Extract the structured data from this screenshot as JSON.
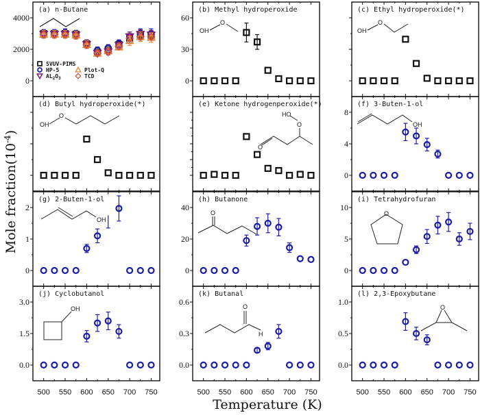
{
  "chart_data": {
    "type": "scatter",
    "xlabel": "Temperature (K)",
    "ylabel": "Mole fraction(10^-4)",
    "ylabel_parts": {
      "main": "Mole fraction(10",
      "sup": "-4",
      "end": ")"
    },
    "x_ticks": [
      500,
      550,
      600,
      650,
      700,
      750
    ],
    "x_range": [
      475,
      770
    ],
    "x": [
      500,
      525,
      550,
      575,
      600,
      625,
      650,
      675,
      700,
      725,
      750
    ],
    "colors": {
      "SVUV-PIMS": "#111111",
      "HP-5": "#1c1ca8",
      "Al2O3": "#7a1a78",
      "Plot-Q": "#e0873a",
      "TCD": "#d04a3a"
    },
    "panels": [
      {
        "id": "a",
        "title": "(a) n-Butane",
        "molecule": "n-butane",
        "ylim": [
          -1000,
          5000
        ],
        "yticks": [
          0,
          2000,
          4000
        ],
        "ytick_labels": [
          "0",
          "2000",
          "4000"
        ],
        "legend": [
          {
            "name": "SVUV-PIMS",
            "marker": "square"
          },
          {
            "name": "HP-5",
            "marker": "circle"
          },
          {
            "name": "AL2O3",
            "marker": "triangle-down",
            "label_main": "AL",
            "sub1": "2",
            "mid": "O",
            "sub2": "3"
          },
          {
            "name": "Plot-Q",
            "marker": "triangle-up"
          },
          {
            "name": "TCD",
            "marker": "diamond"
          }
        ],
        "series": [
          {
            "name": "SVUV-PIMS",
            "marker": "square",
            "values": [
              3000,
              3000,
              3000,
              2950,
              2350,
              1800,
              1950,
              2300,
              2700,
              2900,
              2900
            ],
            "err": [
              250,
              250,
              250,
              250,
              250,
              200,
              200,
              250,
              300,
              300,
              300
            ]
          },
          {
            "name": "HP-5",
            "marker": "circle",
            "values": [
              3000,
              3000,
              3050,
              2950,
              2400,
              1950,
              2100,
              2400,
              2800,
              3000,
              3000
            ],
            "err": [
              250,
              250,
              250,
              250,
              200,
              200,
              200,
              200,
              300,
              300,
              300
            ]
          },
          {
            "name": "Al2O3",
            "marker": "triangle-down",
            "values": [
              2950,
              2950,
              2950,
              2900,
              2300,
              1750,
              1850,
              2250,
              2800,
              2950,
              2900
            ],
            "err": [
              250,
              250,
              250,
              250,
              250,
              200,
              200,
              200,
              300,
              300,
              300
            ]
          },
          {
            "name": "Plot-Q",
            "marker": "triangle-up",
            "values": [
              2950,
              2950,
              2950,
              2900,
              2300,
              1750,
              1900,
              2150,
              2550,
              2800,
              2750
            ],
            "err": [
              250,
              250,
              250,
              250,
              250,
              200,
              200,
              200,
              300,
              300,
              300
            ]
          },
          {
            "name": "TCD",
            "marker": "diamond",
            "values": [
              2950,
              2950,
              2950,
              2900,
              2300,
              1750,
              1850,
              2200,
              2700,
              2800,
              2800
            ],
            "err": [
              0,
              0,
              0,
              0,
              0,
              0,
              0,
              0,
              0,
              0,
              0
            ]
          }
        ]
      },
      {
        "id": "b",
        "title": "(b) Methyl hydroperoxide",
        "molecule": "methyl-hydroperoxide",
        "ylim": [
          -15,
          75
        ],
        "yticks": [
          0,
          30,
          60
        ],
        "ytick_labels": [
          "0",
          "30",
          "60"
        ],
        "series": [
          {
            "name": "SVUV-PIMS",
            "marker": "square",
            "values": [
              0,
              0,
              0,
              0,
              46,
              37,
              10,
              2,
              0,
              0,
              0
            ],
            "err": [
              0,
              0,
              0,
              0,
              9,
              7,
              0,
              0,
              0,
              0,
              0
            ]
          }
        ]
      },
      {
        "id": "c",
        "title": "(c) Ethyl hydroperoxide(*)",
        "molecule": "ethyl-hydroperoxide",
        "ylim": [
          -0.5,
          2.5
        ],
        "yticks": [
          0,
          1,
          2
        ],
        "ytick_labels": [
          "",
          "",
          ""
        ],
        "series": [
          {
            "name": "SVUV-PIMS",
            "marker": "square",
            "values": [
              0,
              0,
              0,
              0,
              1.32,
              0.55,
              0.08,
              0,
              0,
              0,
              0
            ],
            "err": [
              0,
              0,
              0,
              0,
              0,
              0,
              0,
              0,
              0,
              0,
              0
            ]
          }
        ]
      },
      {
        "id": "d",
        "title": "(d) Butyl hydroperoxide(*)",
        "molecule": "butyl-hydroperoxide",
        "ylim": [
          -0.5,
          2.5
        ],
        "yticks": [
          0,
          1,
          2
        ],
        "ytick_labels": [
          "",
          "",
          ""
        ],
        "series": [
          {
            "name": "SVUV-PIMS",
            "marker": "square",
            "values": [
              0,
              0,
              0,
              0,
              1.15,
              0.5,
              0.08,
              0,
              0,
              0,
              0
            ],
            "err": [
              0,
              0,
              0,
              0,
              0,
              0,
              0,
              0,
              0,
              0,
              0
            ]
          }
        ]
      },
      {
        "id": "e",
        "title": "(e) Ketone hydrogenperoxide(*)",
        "molecule": "ketone-hydroperoxide",
        "ylim": [
          -0.5,
          2.5
        ],
        "yticks": [
          0,
          0.5,
          1,
          1.5,
          2
        ],
        "ytick_labels": [
          "",
          "",
          "",
          "",
          ""
        ],
        "series": [
          {
            "name": "SVUV-PIMS",
            "marker": "square",
            "values": [
              0,
              0.03,
              0,
              0,
              1.23,
              0.66,
              0.22,
              0.15,
              0,
              0.03,
              0
            ],
            "err": [
              0,
              0,
              0,
              0,
              0,
              0,
              0,
              0,
              0,
              0,
              0
            ]
          }
        ]
      },
      {
        "id": "f",
        "title": "(f) 3-Buten-1-ol",
        "molecule": "3-buten-1-ol",
        "ylim": [
          -2,
          10
        ],
        "yticks": [
          0,
          4,
          8
        ],
        "ytick_labels": [
          "0",
          "4",
          "8"
        ],
        "series": [
          {
            "name": "HP-5",
            "marker": "circle",
            "values": [
              0,
              0,
              0,
              0,
              5.5,
              5.0,
              3.9,
              2.7,
              0,
              0,
              0
            ],
            "err": [
              0,
              0,
              0,
              0,
              1.1,
              1.0,
              0.8,
              0.5,
              0,
              0,
              0
            ]
          }
        ]
      },
      {
        "id": "g",
        "title": "(g) 2-Buten-1-ol",
        "molecule": "2-buten-1-ol",
        "ylim": [
          -0.5,
          2.5
        ],
        "yticks": [
          0,
          1,
          2
        ],
        "ytick_labels": [
          "0",
          "1",
          "2"
        ],
        "series": [
          {
            "name": "HP-5",
            "marker": "circle",
            "values": [
              0,
              0,
              0,
              0,
              0.7,
              1.1,
              null,
              1.97,
              0,
              0,
              0
            ],
            "err": [
              0,
              0,
              0,
              0,
              0.13,
              0.22,
              0,
              0.4,
              0,
              0,
              0
            ]
          }
        ]
      },
      {
        "id": "h",
        "title": "(h) Butanone",
        "molecule": "butanone",
        "ylim": [
          -10,
          50
        ],
        "yticks": [
          0,
          20,
          40
        ],
        "ytick_labels": [
          "0",
          "20",
          "40"
        ],
        "series": [
          {
            "name": "HP-5",
            "marker": "circle",
            "values": [
              0,
              0,
              0,
              0,
              19,
              28,
              30,
              27.5,
              14.5,
              7.5,
              7
            ],
            "err": [
              0,
              0,
              0,
              0,
              3.5,
              5.5,
              6,
              5.5,
              3,
              0,
              0
            ]
          }
        ]
      },
      {
        "id": "i",
        "title": "(i) Tetrahydrofuran",
        "molecule": "tetrahydrofuran",
        "ylim": [
          -2.5,
          12.5
        ],
        "yticks": [
          0,
          5,
          10
        ],
        "ytick_labels": [
          "0",
          "5",
          "10"
        ],
        "series": [
          {
            "name": "HP-5",
            "marker": "circle",
            "values": [
              0,
              0,
              0,
              0,
              1.3,
              3.3,
              5.4,
              7.2,
              7.7,
              5.0,
              6.2
            ],
            "err": [
              0,
              0,
              0,
              0,
              0,
              0.6,
              1.1,
              1.4,
              1.5,
              1.0,
              1.3
            ]
          }
        ]
      },
      {
        "id": "j",
        "title": "(j) Cyclobutanol",
        "molecule": "cyclobutanol",
        "ylim": [
          -0.75,
          3.75
        ],
        "yticks": [
          0,
          1.5,
          3.0
        ],
        "ytick_labels": [
          "0.0",
          "1.5",
          "3.0"
        ],
        "series": [
          {
            "name": "HP-5",
            "marker": "circle",
            "values": [
              0,
              0,
              0,
              0,
              1.37,
              2.0,
              2.1,
              1.6,
              0,
              0,
              0
            ],
            "err": [
              0,
              0,
              0,
              0,
              0.27,
              0.4,
              0.42,
              0.32,
              0,
              0,
              0
            ]
          }
        ]
      },
      {
        "id": "k",
        "title": "(k) Butanal",
        "molecule": "butanal",
        "ylim": [
          -0.15,
          0.75
        ],
        "yticks": [
          0,
          0.3,
          0.6
        ],
        "ytick_labels": [
          "0.0",
          "0.3",
          "0.6"
        ],
        "series": [
          {
            "name": "HP-5",
            "marker": "circle",
            "values": [
              0,
              0,
              0,
              0,
              0,
              0.14,
              0.18,
              0.32,
              0,
              0,
              0
            ],
            "err": [
              0,
              0,
              0,
              0,
              0,
              0.02,
              0.035,
              0.065,
              0,
              0,
              0
            ]
          }
        ]
      },
      {
        "id": "l",
        "title": "(l) 2,3-Epoxybutane",
        "molecule": "2,3-epoxybutane",
        "ylim": [
          -0.25,
          1.25
        ],
        "yticks": [
          0,
          0.5,
          1.0
        ],
        "ytick_labels": [
          "0.0",
          "0.5",
          "1.0"
        ],
        "series": [
          {
            "name": "HP-5",
            "marker": "circle",
            "values": [
              0,
              0,
              0,
              0,
              0.69,
              0.5,
              0.4,
              0,
              0,
              0,
              0
            ],
            "err": [
              0,
              0,
              0,
              0,
              0.14,
              0.1,
              0.08,
              0,
              0,
              0,
              0
            ]
          }
        ]
      }
    ],
    "g_extra_errorbar": {
      "x": 650,
      "low": 1.35,
      "high": 1.75,
      "color": "#1c1ca8"
    }
  },
  "molecule_labels": {
    "OH": "OH",
    "O": "O",
    "HO": "HO",
    "H": "H"
  }
}
